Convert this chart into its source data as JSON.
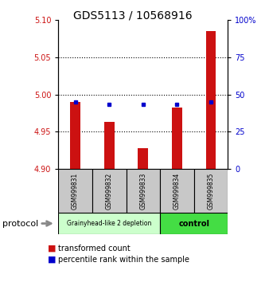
{
  "title": "GDS5113 / 10568916",
  "categories": [
    "GSM999831",
    "GSM999832",
    "GSM999833",
    "GSM999834",
    "GSM999835"
  ],
  "bar_values": [
    4.99,
    4.963,
    4.928,
    4.982,
    5.085
  ],
  "bar_bottom": 4.9,
  "blue_values": [
    4.99,
    4.987,
    4.987,
    4.987,
    4.99
  ],
  "bar_color": "#cc1111",
  "blue_color": "#0000cc",
  "ylim_left": [
    4.9,
    5.1
  ],
  "ylim_right": [
    0,
    100
  ],
  "yticks_left": [
    4.9,
    4.95,
    5.0,
    5.05,
    5.1
  ],
  "yticks_right": [
    0,
    25,
    50,
    75,
    100
  ],
  "ytick_labels_right": [
    "0",
    "25",
    "50",
    "75",
    "100%"
  ],
  "grid_lines": [
    4.95,
    5.0,
    5.05
  ],
  "group1_label": "Grainyhead-like 2 depletion",
  "group2_label": "control",
  "group1_color": "#ccffcc",
  "group2_color": "#44dd44",
  "group1_indices": [
    0,
    1,
    2
  ],
  "group2_indices": [
    3,
    4
  ],
  "protocol_label": "protocol",
  "legend1_label": "transformed count",
  "legend2_label": "percentile rank within the sample",
  "bg_color": "#ffffff",
  "tick_label_color_left": "#cc1111",
  "tick_label_color_right": "#0000cc",
  "title_fontsize": 10,
  "axis_fontsize": 7,
  "legend_fontsize": 7,
  "bar_width": 0.3
}
